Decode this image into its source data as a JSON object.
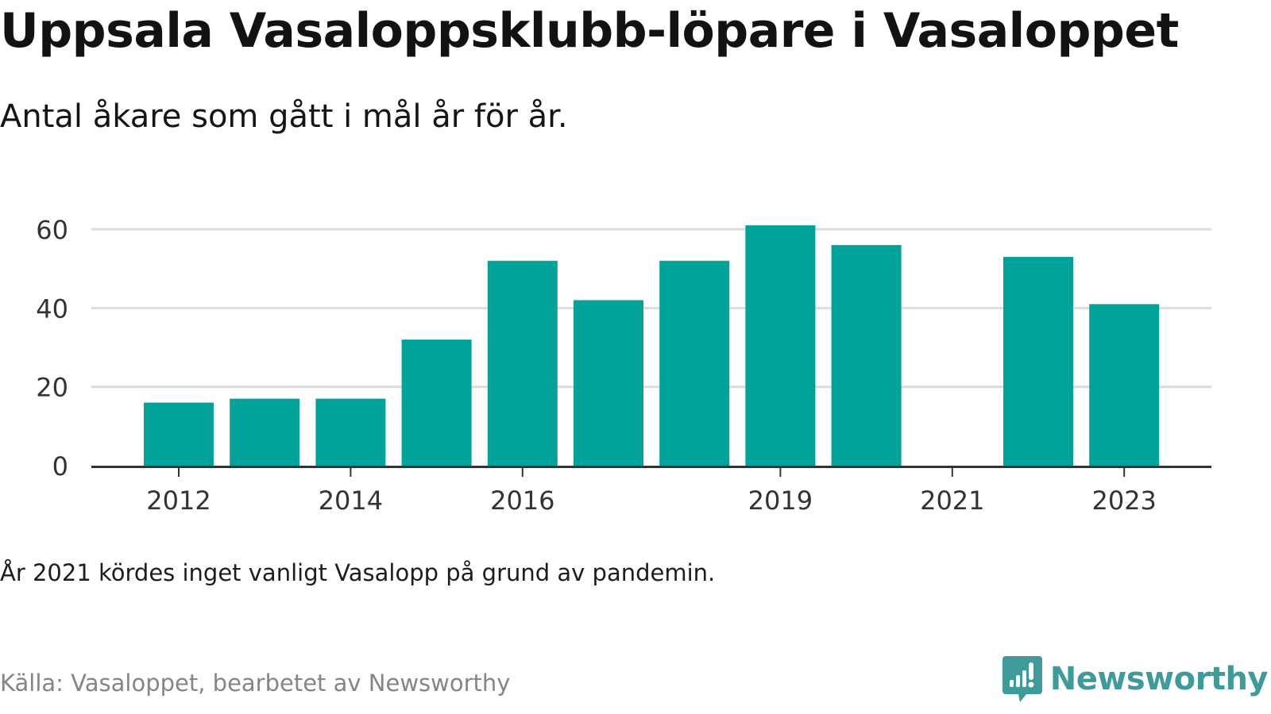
{
  "header": {
    "title": "Uppsala Vasaloppsklubb-löpare i Vasaloppet",
    "subtitle": "Antal åkare som gått i mål år för år."
  },
  "chart_data": {
    "type": "bar",
    "title": "Uppsala Vasaloppsklubb-löpare i Vasaloppet",
    "subtitle": "Antal åkare som gått i mål år för år.",
    "xlabel": "",
    "ylabel": "",
    "categories": [
      "2012",
      "2013",
      "2014",
      "2015",
      "2016",
      "2017",
      "2018",
      "2019",
      "2020",
      "2021",
      "2022",
      "2023"
    ],
    "values": [
      16,
      17,
      17,
      32,
      52,
      42,
      52,
      61,
      56,
      null,
      53,
      41
    ],
    "x_tick_labels": [
      "2012",
      "2014",
      "2016",
      "2019",
      "2021",
      "2023"
    ],
    "y_ticks": [
      0,
      20,
      40,
      60
    ],
    "ylim": [
      0,
      62
    ],
    "grid": true,
    "legend": "none",
    "bar_color": "#00a29a"
  },
  "footer": {
    "note": "År 2021 kördes inget vanligt Vasalopp på grund av pandemin.",
    "source": "Källa: Vasaloppet, bearbetet av Newsworthy",
    "brand_name": "Newsworthy",
    "brand_icon": "newsworthy-logo-icon",
    "brand_color": "#3e9b99"
  }
}
